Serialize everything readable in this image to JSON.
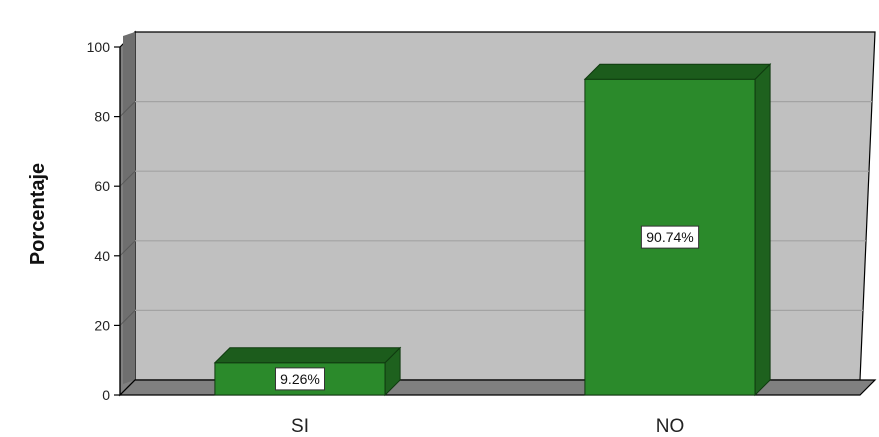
{
  "chart_data": {
    "type": "bar",
    "categories": [
      "SI",
      "NO"
    ],
    "values": [
      9.26,
      90.74
    ],
    "data_labels": [
      "9.26%",
      "90.74%"
    ],
    "title": "",
    "xlabel": "",
    "ylabel": "Porcentaje",
    "ylim": [
      0,
      100
    ],
    "yticks": [
      "0",
      "20",
      "40",
      "60",
      "80",
      "100"
    ],
    "grid": true,
    "style": "3d",
    "colors": {
      "bar_front": "#2b8a2b",
      "bar_top": "#1c5c1c",
      "bar_side": "#1e611e",
      "plot_back": "#c0c0c0",
      "plot_floor": "#808080",
      "plot_wall": "#808080",
      "gridline": "#a3a3a3"
    }
  }
}
